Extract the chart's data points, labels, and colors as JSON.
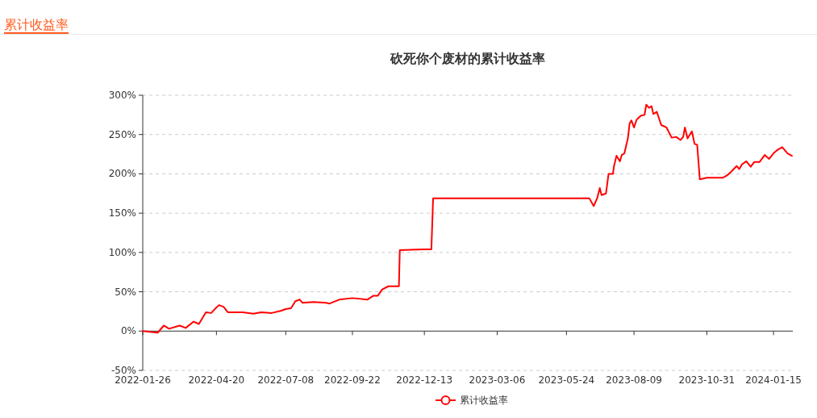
{
  "chart_data": {
    "type": "line",
    "title": "砍死你个废材的累计收益率",
    "annotations": [
      "累计收益率"
    ],
    "x": [
      "2022-01-26",
      "2022-02-12",
      "2022-02-19",
      "2022-02-25",
      "2022-03-09",
      "2022-03-16",
      "2022-03-25",
      "2022-03-31",
      "2022-04-08",
      "2022-04-14",
      "2022-04-20",
      "2022-04-23",
      "2022-04-28",
      "2022-05-03",
      "2022-05-20",
      "2022-06-01",
      "2022-06-10",
      "2022-06-22",
      "2022-07-03",
      "2022-07-08",
      "2022-07-14",
      "2022-07-19",
      "2022-07-24",
      "2022-07-27",
      "2022-08-09",
      "2022-08-23",
      "2022-08-27",
      "2022-09-07",
      "2022-09-22",
      "2022-10-09",
      "2022-10-16",
      "2022-10-21",
      "2022-10-26",
      "2022-11-02",
      "2022-11-14",
      "2022-11-15",
      "2022-12-13",
      "2022-12-21",
      "2022-12-23",
      "2023-03-06",
      "2023-05-24",
      "2023-06-16",
      "2023-06-19",
      "2023-06-24",
      "2023-06-28",
      "2023-07-01",
      "2023-07-03",
      "2023-07-08",
      "2023-07-11",
      "2023-07-16",
      "2023-07-17",
      "2023-07-20",
      "2023-07-24",
      "2023-07-26",
      "2023-07-29",
      "2023-08-02",
      "2023-08-04",
      "2023-08-06",
      "2023-08-09",
      "2023-08-12",
      "2023-08-17",
      "2023-08-21",
      "2023-08-23",
      "2023-08-26",
      "2023-08-29",
      "2023-08-31",
      "2023-09-04",
      "2023-09-09",
      "2023-09-15",
      "2023-09-21",
      "2023-09-26",
      "2023-10-01",
      "2023-10-04",
      "2023-10-06",
      "2023-10-09",
      "2023-10-14",
      "2023-10-17",
      "2023-10-20",
      "2023-10-23",
      "2023-10-27",
      "2023-10-31",
      "2023-11-18",
      "2023-11-23",
      "2023-11-28",
      "2023-12-04",
      "2023-12-07",
      "2023-12-10",
      "2023-12-15",
      "2023-12-20",
      "2023-12-24",
      "2023-12-30",
      "2024-01-05",
      "2024-01-10",
      "2024-01-15",
      "2024-01-19",
      "2024-01-25",
      "2024-01-31",
      "2024-02-05"
    ],
    "series": [
      {
        "name": "累计收益率",
        "color": "#ff0000",
        "values": [
          0,
          -2,
          7,
          3,
          7,
          4,
          12,
          9,
          24,
          23,
          30,
          33,
          31,
          24,
          24,
          22,
          24,
          23,
          26,
          28,
          29,
          38,
          40,
          36,
          37,
          36,
          35,
          40,
          42,
          40,
          45,
          45,
          53,
          57,
          57,
          103,
          104,
          104,
          169,
          169,
          169,
          169,
          169,
          159,
          169,
          182,
          173,
          175,
          200,
          200,
          209,
          223,
          216,
          224,
          226,
          245,
          264,
          268,
          259,
          269,
          274,
          275,
          288,
          284,
          286,
          276,
          279,
          262,
          259,
          246,
          247,
          243,
          247,
          259,
          245,
          254,
          238,
          237,
          193,
          194,
          195,
          195,
          198,
          203,
          210,
          206,
          212,
          216,
          209,
          215,
          215,
          224,
          219,
          226,
          230,
          234,
          226,
          223
        ]
      }
    ],
    "xlim": [
      "2022-01-26",
      "2024-02-06"
    ],
    "xticks": [
      "2022-01-26",
      "2022-04-20",
      "2022-07-08",
      "2022-09-22",
      "2022-12-13",
      "2023-03-06",
      "2023-05-24",
      "2023-08-09",
      "2023-10-31",
      "2024-01-15"
    ],
    "ylim": [
      -50,
      300
    ],
    "yticks": [
      {
        "value": -50,
        "label": "-50%"
      },
      {
        "value": 0,
        "label": "0%"
      },
      {
        "value": 50,
        "label": "50%"
      },
      {
        "value": 100,
        "label": "100%"
      },
      {
        "value": 150,
        "label": "150%"
      },
      {
        "value": 200,
        "label": "200%"
      },
      {
        "value": 250,
        "label": "250%"
      },
      {
        "value": 300,
        "label": "300%"
      }
    ],
    "grid": "y",
    "legend": "bottom"
  }
}
